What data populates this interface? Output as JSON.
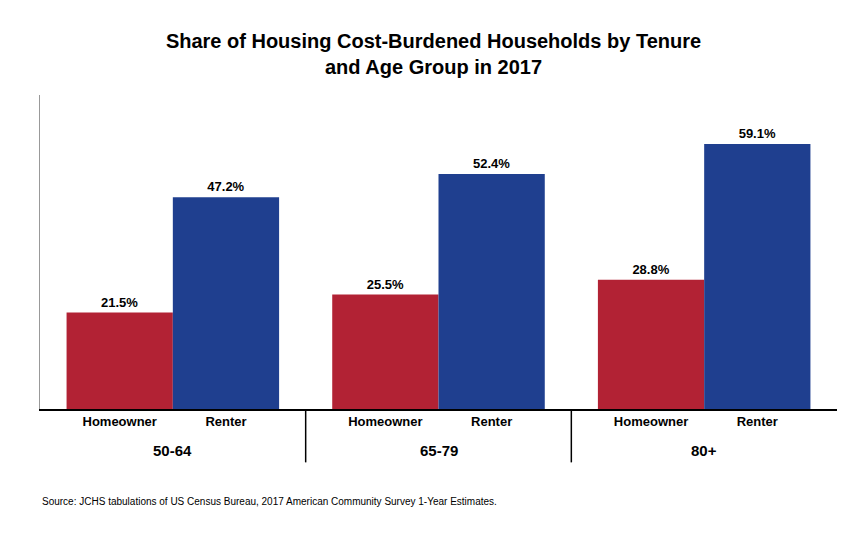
{
  "chart_data": {
    "type": "bar",
    "title": "Share of Housing Cost-Burdened Households by Tenure\nand Age Group in 2017",
    "categories": [
      "50-64",
      "65-79",
      "80+"
    ],
    "series": [
      {
        "name": "Homeowner",
        "color": "#B22234",
        "values": [
          21.5,
          25.5,
          28.8
        ],
        "value_labels": [
          "21.5%",
          "25.5%",
          "28.8%"
        ]
      },
      {
        "name": "Renter",
        "color": "#1F3F8F",
        "values": [
          47.2,
          52.4,
          59.1
        ],
        "value_labels": [
          "47.2%",
          "52.4%",
          "59.1%"
        ]
      }
    ],
    "ylim": [
      0,
      70
    ],
    "yticks": [],
    "grid": false,
    "data_labels": true,
    "tick_labels": "x",
    "annotations": [
      "Source: JCHS tabulations of US Census Bureau, 2017 American Community Survey 1-Year Estimates."
    ]
  }
}
